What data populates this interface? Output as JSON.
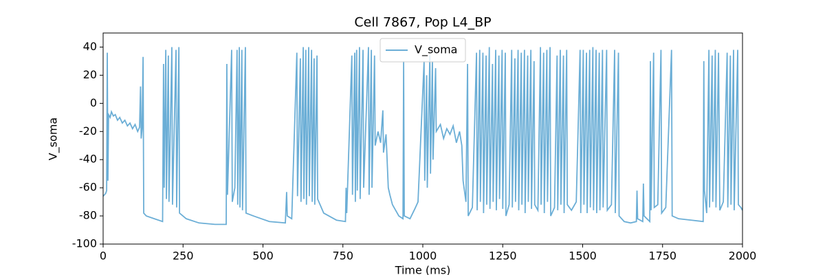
{
  "chart_data": {
    "type": "line",
    "title": "Cell 7867, Pop L4_BP",
    "xlabel": "Time (ms)",
    "ylabel": "V_soma",
    "xlim": [
      0,
      2000
    ],
    "ylim": [
      -100,
      50
    ],
    "xticks": [
      0,
      250,
      500,
      750,
      1000,
      1250,
      1500,
      1750,
      2000
    ],
    "yticks": [
      -100,
      -80,
      -60,
      -40,
      -20,
      0,
      20,
      40
    ],
    "legend": "upper center",
    "series": [
      {
        "name": "V_soma",
        "color": "#6baed6",
        "x": [
          0,
          8,
          11,
          13,
          15,
          17,
          22,
          26,
          32,
          38,
          45,
          52,
          60,
          68,
          76,
          84,
          92,
          100,
          108,
          114,
          117,
          119,
          122,
          125,
          127,
          135,
          160,
          186,
          189,
          191,
          196,
          198,
          204,
          206,
          215,
          217,
          228,
          230,
          237,
          239,
          260,
          300,
          350,
          385,
          387,
          389,
          402,
          404,
          412,
          419,
          421,
          426,
          428,
          434,
          436,
          445,
          447,
          470,
          520,
          570,
          574,
          576,
          590,
          606,
          608,
          617,
          619,
          626,
          628,
          634,
          636,
          643,
          645,
          652,
          654,
          660,
          662,
          669,
          671,
          690,
          730,
          758,
          760,
          762,
          778,
          780,
          787,
          789,
          793,
          795,
          802,
          804,
          813,
          815,
          830,
          832,
          839,
          841,
          849,
          851,
          860,
          868,
          875,
          877,
          885,
          892,
          897,
          905,
          925,
          938,
          940,
          942,
          960,
          975,
          985,
          1004,
          1006,
          1012,
          1014,
          1022,
          1024,
          1030,
          1032,
          1040,
          1042,
          1055,
          1065,
          1075,
          1085,
          1095,
          1105,
          1115,
          1122,
          1126,
          1135,
          1140,
          1142,
          1155,
          1168,
          1170,
          1178,
          1180,
          1188,
          1190,
          1198,
          1200,
          1208,
          1210,
          1218,
          1220,
          1228,
          1230,
          1238,
          1240,
          1248,
          1250,
          1258,
          1260,
          1270,
          1278,
          1280,
          1288,
          1290,
          1298,
          1300,
          1308,
          1310,
          1318,
          1320,
          1328,
          1330,
          1338,
          1340,
          1348,
          1350,
          1360,
          1368,
          1370,
          1378,
          1380,
          1388,
          1390,
          1398,
          1400,
          1412,
          1420,
          1422,
          1430,
          1432,
          1440,
          1442,
          1450,
          1452,
          1465,
          1480,
          1492,
          1494,
          1502,
          1504,
          1512,
          1514,
          1522,
          1524,
          1532,
          1534,
          1542,
          1544,
          1552,
          1554,
          1562,
          1564,
          1575,
          1577,
          1590,
          1600,
          1602,
          1612,
          1614,
          1630,
          1650,
          1668,
          1670,
          1672,
          1688,
          1690,
          1692,
          1710,
          1712,
          1714,
          1722,
          1724,
          1735,
          1745,
          1747,
          1760,
          1778,
          1780,
          1800,
          1840,
          1877,
          1879,
          1881,
          1888,
          1895,
          1897,
          1905,
          1907,
          1915,
          1917,
          1925,
          1929,
          1940,
          1952,
          1954,
          1962,
          1964,
          1972,
          1974,
          1985,
          1987,
          1995,
          2000
        ],
        "values": [
          -66,
          -64,
          -62,
          36,
          -55,
          -8,
          -10,
          -6,
          -9,
          -8,
          -12,
          -10,
          -14,
          -12,
          -16,
          -14,
          -18,
          -15,
          -20,
          -17,
          12,
          -25,
          -18,
          33,
          -78,
          -80,
          -82,
          -84,
          28,
          -60,
          38,
          -68,
          34,
          -70,
          40,
          -72,
          38,
          -74,
          40,
          -78,
          -82,
          -85,
          -86,
          -86,
          28,
          -65,
          38,
          -70,
          -60,
          38,
          -72,
          40,
          -74,
          38,
          -76,
          40,
          -78,
          -80,
          -84,
          -85,
          -63,
          -80,
          -82,
          36,
          -66,
          32,
          -70,
          40,
          -68,
          38,
          -72,
          40,
          -66,
          38,
          -70,
          32,
          -72,
          34,
          -68,
          -78,
          -83,
          -84,
          -60,
          -78,
          34,
          -65,
          36,
          -70,
          38,
          -62,
          40,
          -68,
          38,
          -60,
          40,
          -65,
          38,
          -60,
          34,
          -30,
          -20,
          -28,
          -5,
          -35,
          -22,
          -60,
          -65,
          -72,
          -80,
          -82,
          30,
          -80,
          -82,
          -75,
          -70,
          30,
          -55,
          20,
          -60,
          34,
          -50,
          30,
          -40,
          25,
          -20,
          -15,
          -25,
          -18,
          -22,
          -16,
          -28,
          -20,
          -30,
          -55,
          -70,
          28,
          -80,
          -74,
          36,
          -76,
          38,
          -70,
          36,
          -78,
          34,
          -72,
          40,
          -75,
          28,
          -70,
          38,
          -76,
          34,
          -68,
          38,
          -75,
          36,
          -80,
          -72,
          38,
          -74,
          32,
          -70,
          38,
          -76,
          36,
          -72,
          38,
          -78,
          34,
          -70,
          38,
          -75,
          30,
          -72,
          -76,
          40,
          -72,
          36,
          -78,
          38,
          -70,
          40,
          -80,
          -74,
          34,
          -76,
          38,
          -72,
          34,
          -78,
          38,
          -72,
          -76,
          -70,
          38,
          -78,
          38,
          -72,
          36,
          -78,
          38,
          -74,
          40,
          -76,
          38,
          -78,
          36,
          -76,
          38,
          -74,
          38,
          -76,
          -72,
          38,
          -78,
          36,
          -80,
          -84,
          -85,
          -84,
          -62,
          -82,
          -84,
          -57,
          -80,
          -84,
          30,
          -76,
          36,
          -74,
          -72,
          38,
          -78,
          -74,
          38,
          -80,
          -82,
          -83,
          -84,
          30,
          -62,
          -78,
          38,
          -74,
          34,
          -70,
          38,
          -74,
          36,
          -76,
          -70,
          36,
          -74,
          34,
          -72,
          38,
          -76,
          38,
          -72,
          -74,
          -76
        ]
      }
    ]
  }
}
